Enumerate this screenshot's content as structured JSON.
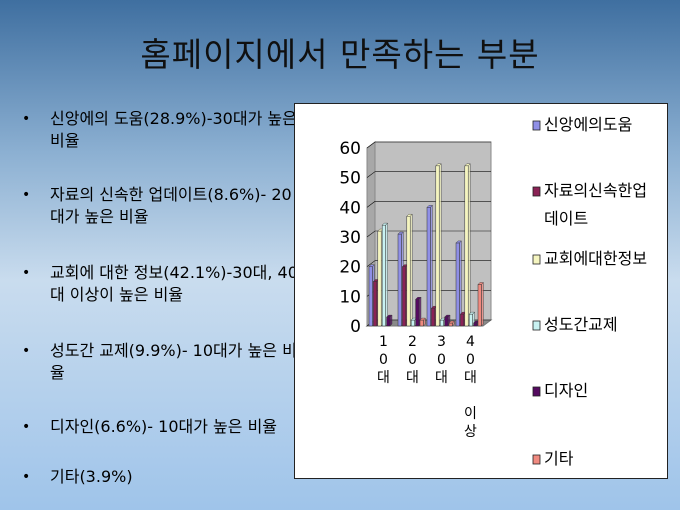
{
  "slide": {
    "title": "홈페이지에서 만족하는 부분",
    "bullets": [
      {
        "text": "신앙에의 도움(28.9%)-30대가 높은 비율"
      },
      {
        "text": "자료의 신속한 업데이트(8.6%)- 20대가 높은 비율"
      },
      {
        "text": "교회에 대한 정보(42.1%)-30대, 40대 이상이 높은 비율"
      },
      {
        "text": "성도간 교제(9.9%)- 10대가 높은 비율"
      },
      {
        "text": "디자인(6.6%)- 10대가 높은 비율"
      },
      {
        "text": "기타(3.9%)"
      }
    ]
  },
  "chart_data": {
    "type": "bar",
    "categories": [
      "10대",
      "20대",
      "30대",
      "40대 이상"
    ],
    "ylim": [
      0,
      60
    ],
    "yticks": [
      "0",
      "10",
      "20",
      "30",
      "40",
      "50",
      "60"
    ],
    "series": [
      {
        "name": "신앙에의도움",
        "color": "#8f8fe6",
        "values": [
          20,
          31,
          40,
          28
        ]
      },
      {
        "name": "자료의신속한업데이트",
        "color": "#8a2255",
        "values": [
          15,
          20,
          6,
          4
        ]
      },
      {
        "name": "교회에대한정보",
        "color": "#f5f5c0",
        "values": [
          32,
          37,
          54,
          54
        ]
      },
      {
        "name": "성도간교제",
        "color": "#c8f2f2",
        "values": [
          34,
          2,
          2,
          4
        ]
      },
      {
        "name": "디자인",
        "color": "#550a60",
        "values": [
          3,
          9,
          3,
          1
        ]
      },
      {
        "name": "기타",
        "color": "#f08a80",
        "values": [
          0,
          2,
          1,
          14
        ]
      }
    ],
    "grid": true,
    "legend": "right",
    "is_3d": true
  }
}
